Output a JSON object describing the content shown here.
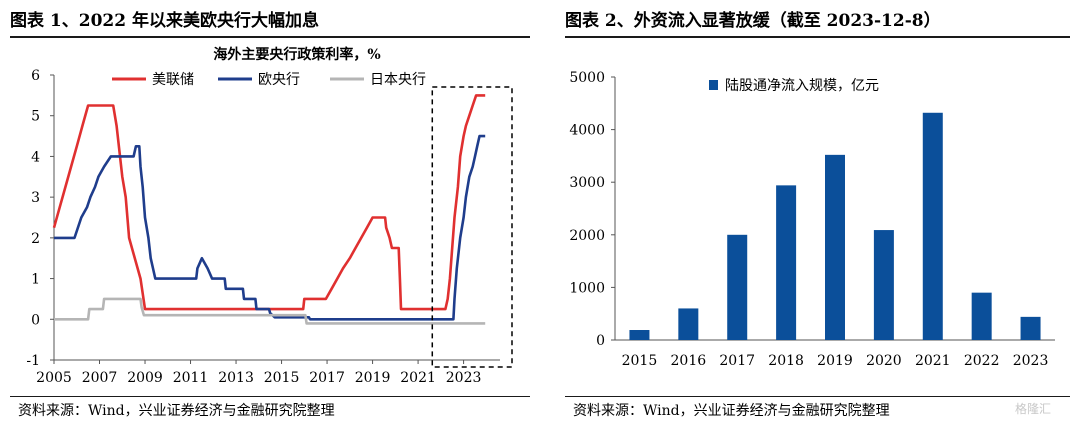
{
  "left_panel": {
    "figure_title": "图表 1、2022 年以来美欧央行大幅加息",
    "source": "资料来源：Wind，兴业证券经济与金融研究院整理"
  },
  "right_panel": {
    "figure_title": "图表 2、外资流入显著放缓（截至 2023-12-8）",
    "source": "资料来源：Wind，兴业证券经济与金融研究院整理"
  },
  "watermark": "格隆汇",
  "colors": {
    "fed": "#e03030",
    "ecb": "#1f3d8c",
    "boj": "#b5b5b5",
    "bar": "#0b4f9a",
    "highlight_box": "#000000"
  },
  "chart_data": [
    {
      "type": "line",
      "title": "海外主要央行政策利率，%",
      "xlabel": "",
      "ylabel": "",
      "xlim": [
        2005,
        2024.6
      ],
      "ylim": [
        -1,
        6
      ],
      "x_ticks": [
        "2005",
        "2007",
        "2009",
        "2011",
        "2013",
        "2015",
        "2017",
        "2019",
        "2021",
        "2023"
      ],
      "y_ticks": [
        "-1",
        "0",
        "1",
        "2",
        "3",
        "4",
        "5",
        "6"
      ],
      "legend_position": "top",
      "highlight_range": [
        2021.8,
        2024.6
      ],
      "highlight_style": "dashed-box",
      "series": [
        {
          "name": "美联储",
          "color": "#e03030",
          "points": [
            [
              2005.0,
              2.25
            ],
            [
              2005.25,
              2.75
            ],
            [
              2005.5,
              3.25
            ],
            [
              2005.75,
              3.75
            ],
            [
              2006.0,
              4.25
            ],
            [
              2006.25,
              4.75
            ],
            [
              2006.5,
              5.25
            ],
            [
              2007.6,
              5.25
            ],
            [
              2007.75,
              4.75
            ],
            [
              2008.0,
              3.5
            ],
            [
              2008.15,
              3.0
            ],
            [
              2008.3,
              2.0
            ],
            [
              2008.8,
              1.0
            ],
            [
              2009.0,
              0.25
            ],
            [
              2015.95,
              0.25
            ],
            [
              2016.0,
              0.5
            ],
            [
              2016.95,
              0.5
            ],
            [
              2017.2,
              0.75
            ],
            [
              2017.45,
              1.0
            ],
            [
              2017.7,
              1.25
            ],
            [
              2018.0,
              1.5
            ],
            [
              2018.25,
              1.75
            ],
            [
              2018.5,
              2.0
            ],
            [
              2018.75,
              2.25
            ],
            [
              2019.0,
              2.5
            ],
            [
              2019.55,
              2.5
            ],
            [
              2019.6,
              2.25
            ],
            [
              2019.75,
              2.0
            ],
            [
              2019.85,
              1.75
            ],
            [
              2020.15,
              1.75
            ],
            [
              2020.2,
              1.0
            ],
            [
              2020.25,
              0.25
            ],
            [
              2022.2,
              0.25
            ],
            [
              2022.3,
              0.5
            ],
            [
              2022.4,
              1.0
            ],
            [
              2022.5,
              1.75
            ],
            [
              2022.6,
              2.5
            ],
            [
              2022.75,
              3.25
            ],
            [
              2022.85,
              4.0
            ],
            [
              2023.0,
              4.5
            ],
            [
              2023.1,
              4.75
            ],
            [
              2023.25,
              5.0
            ],
            [
              2023.4,
              5.25
            ],
            [
              2023.55,
              5.5
            ],
            [
              2023.95,
              5.5
            ]
          ]
        },
        {
          "name": "欧央行",
          "color": "#1f3d8c",
          "points": [
            [
              2005.0,
              2.0
            ],
            [
              2005.9,
              2.0
            ],
            [
              2006.2,
              2.5
            ],
            [
              2006.45,
              2.75
            ],
            [
              2006.6,
              3.0
            ],
            [
              2006.8,
              3.25
            ],
            [
              2006.95,
              3.5
            ],
            [
              2007.2,
              3.75
            ],
            [
              2007.5,
              4.0
            ],
            [
              2008.5,
              4.0
            ],
            [
              2008.6,
              4.25
            ],
            [
              2008.75,
              4.25
            ],
            [
              2008.8,
              3.75
            ],
            [
              2008.9,
              3.25
            ],
            [
              2009.0,
              2.5
            ],
            [
              2009.15,
              2.0
            ],
            [
              2009.25,
              1.5
            ],
            [
              2009.35,
              1.25
            ],
            [
              2009.45,
              1.0
            ],
            [
              2011.25,
              1.0
            ],
            [
              2011.3,
              1.25
            ],
            [
              2011.5,
              1.5
            ],
            [
              2011.75,
              1.25
            ],
            [
              2011.95,
              1.0
            ],
            [
              2012.5,
              1.0
            ],
            [
              2012.55,
              0.75
            ],
            [
              2013.3,
              0.75
            ],
            [
              2013.35,
              0.5
            ],
            [
              2013.85,
              0.5
            ],
            [
              2013.9,
              0.25
            ],
            [
              2014.45,
              0.25
            ],
            [
              2014.5,
              0.15
            ],
            [
              2014.7,
              0.05
            ],
            [
              2016.2,
              0.05
            ],
            [
              2016.25,
              0.0
            ],
            [
              2022.55,
              0.0
            ],
            [
              2022.6,
              0.5
            ],
            [
              2022.7,
              1.25
            ],
            [
              2022.85,
              2.0
            ],
            [
              2023.0,
              2.5
            ],
            [
              2023.1,
              3.0
            ],
            [
              2023.25,
              3.5
            ],
            [
              2023.4,
              3.75
            ],
            [
              2023.5,
              4.0
            ],
            [
              2023.6,
              4.25
            ],
            [
              2023.7,
              4.5
            ],
            [
              2023.95,
              4.5
            ]
          ]
        },
        {
          "name": "日本央行",
          "color": "#b5b5b5",
          "points": [
            [
              2005.0,
              0.0
            ],
            [
              2006.5,
              0.0
            ],
            [
              2006.55,
              0.25
            ],
            [
              2007.15,
              0.25
            ],
            [
              2007.2,
              0.5
            ],
            [
              2008.8,
              0.5
            ],
            [
              2008.85,
              0.3
            ],
            [
              2008.95,
              0.1
            ],
            [
              2016.05,
              0.1
            ],
            [
              2016.1,
              -0.1
            ],
            [
              2023.95,
              -0.1
            ]
          ]
        }
      ]
    },
    {
      "type": "bar",
      "title": "",
      "xlabel": "",
      "ylabel": "",
      "ylim": [
        0,
        5000
      ],
      "y_ticks": [
        "0",
        "1000",
        "2000",
        "3000",
        "4000",
        "5000"
      ],
      "legend_position": "top-left",
      "categories": [
        "2015",
        "2016",
        "2017",
        "2018",
        "2019",
        "2020",
        "2021",
        "2022",
        "2023"
      ],
      "series": [
        {
          "name": "陆股通净流入规模，亿元",
          "color": "#0b4f9a",
          "values": [
            190,
            600,
            2000,
            2940,
            3520,
            2090,
            4320,
            900,
            440
          ]
        }
      ]
    }
  ]
}
